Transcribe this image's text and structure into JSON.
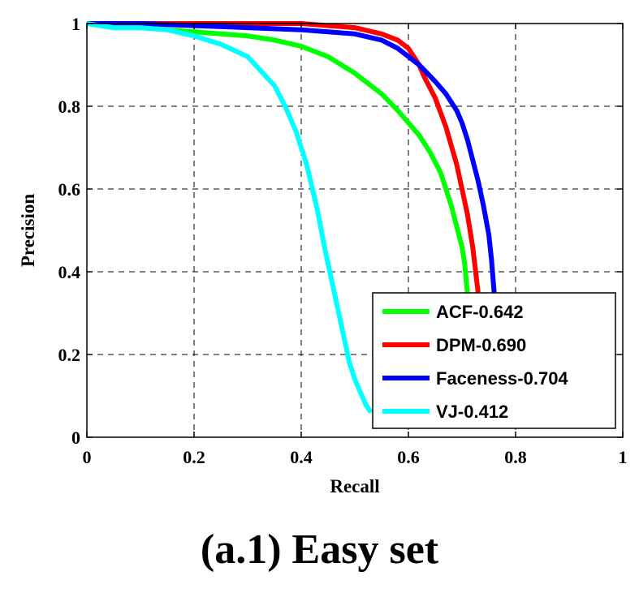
{
  "caption": "(a.1) Easy set",
  "chart_data": {
    "type": "line",
    "xlabel": "Recall",
    "ylabel": "Precision",
    "xlim": [
      0,
      1
    ],
    "ylim": [
      0,
      1
    ],
    "xticks": [
      "0",
      "0.2",
      "0.4",
      "0.6",
      "0.8",
      "1"
    ],
    "yticks": [
      "0",
      "0.2",
      "0.4",
      "0.6",
      "0.8",
      "1"
    ],
    "grid": true,
    "legend_position": "bottom-right",
    "series": [
      {
        "name": "ACF-0.642",
        "color": "#00ff00",
        "x": [
          0,
          0.05,
          0.1,
          0.2,
          0.3,
          0.35,
          0.4,
          0.45,
          0.5,
          0.55,
          0.58,
          0.6,
          0.62,
          0.64,
          0.66,
          0.67,
          0.68,
          0.69,
          0.7,
          0.705,
          0.71
        ],
        "y": [
          1.0,
          0.99,
          0.99,
          0.98,
          0.97,
          0.96,
          0.945,
          0.92,
          0.88,
          0.83,
          0.79,
          0.76,
          0.73,
          0.69,
          0.64,
          0.6,
          0.56,
          0.51,
          0.46,
          0.42,
          0.35
        ]
      },
      {
        "name": "DPM-0.690",
        "color": "#ff0000",
        "x": [
          0,
          0.1,
          0.2,
          0.3,
          0.4,
          0.45,
          0.5,
          0.55,
          0.58,
          0.6,
          0.62,
          0.63,
          0.65,
          0.67,
          0.69,
          0.7,
          0.71,
          0.72,
          0.73
        ],
        "y": [
          1.0,
          1.0,
          1.0,
          1.0,
          1.0,
          0.995,
          0.99,
          0.975,
          0.96,
          0.94,
          0.9,
          0.87,
          0.82,
          0.75,
          0.66,
          0.6,
          0.54,
          0.46,
          0.35
        ]
      },
      {
        "name": "Faceness-0.704",
        "color": "#0000ff",
        "x": [
          0,
          0.1,
          0.2,
          0.3,
          0.4,
          0.45,
          0.5,
          0.55,
          0.58,
          0.6,
          0.62,
          0.65,
          0.67,
          0.69,
          0.7,
          0.71,
          0.72,
          0.73,
          0.74,
          0.75,
          0.755,
          0.76
        ],
        "y": [
          1.0,
          1.0,
          0.995,
          0.99,
          0.985,
          0.98,
          0.975,
          0.96,
          0.94,
          0.92,
          0.9,
          0.86,
          0.83,
          0.79,
          0.76,
          0.72,
          0.67,
          0.62,
          0.56,
          0.49,
          0.43,
          0.35
        ]
      },
      {
        "name": "VJ-0.412",
        "color": "#00ffff",
        "x": [
          0,
          0.05,
          0.1,
          0.15,
          0.2,
          0.25,
          0.3,
          0.35,
          0.37,
          0.39,
          0.41,
          0.43,
          0.445,
          0.46,
          0.47,
          0.48,
          0.49,
          0.5,
          0.51,
          0.52,
          0.53
        ],
        "y": [
          1.0,
          0.99,
          0.99,
          0.985,
          0.97,
          0.95,
          0.92,
          0.85,
          0.8,
          0.74,
          0.66,
          0.55,
          0.45,
          0.36,
          0.3,
          0.24,
          0.18,
          0.14,
          0.11,
          0.08,
          0.06
        ]
      }
    ]
  }
}
